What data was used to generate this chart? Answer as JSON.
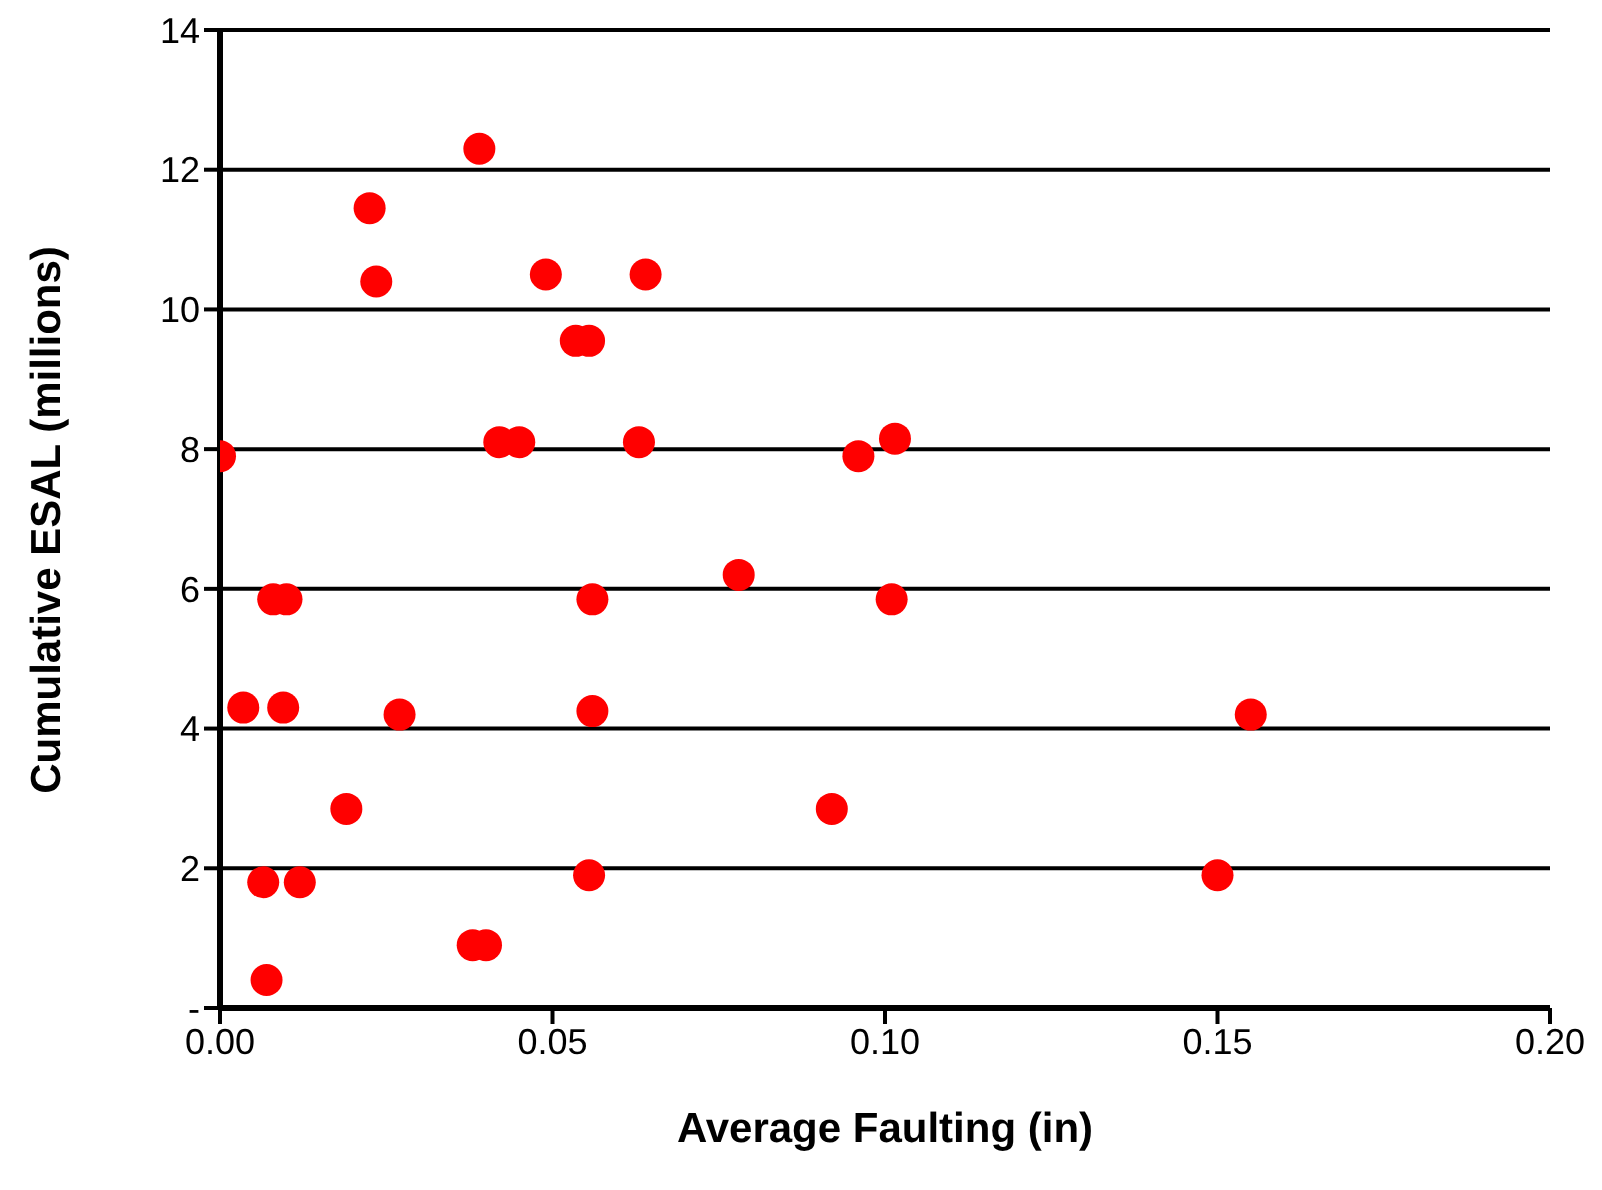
{
  "chart_data": {
    "type": "scatter",
    "xlabel": "Average Faulting (in)",
    "ylabel": "Cumulative ESAL (millions)",
    "xlim": [
      0,
      0.2
    ],
    "xticks": [
      {
        "value": 0,
        "label": "0.00"
      },
      {
        "value": 0.05,
        "label": "0.05"
      },
      {
        "value": 0.1,
        "label": "0.10"
      },
      {
        "value": 0.15,
        "label": "0.15"
      },
      {
        "value": 0.2,
        "label": "0.20"
      }
    ],
    "ylim": [
      0,
      14
    ],
    "yticks": [
      {
        "value": 0,
        "label": "-"
      },
      2,
      4,
      6,
      8,
      10,
      12,
      14
    ],
    "grid": "y",
    "marker": "circle",
    "legend": false,
    "series": [
      {
        "color": "#ff0000",
        "x": [
          0.039,
          0.0225,
          0.0235,
          0.049,
          0.064,
          0.0535,
          0.0555,
          0.0,
          0.042,
          0.045,
          0.063,
          0.096,
          0.1015,
          0.008,
          0.01,
          0.056,
          0.078,
          0.101,
          0.0035,
          0.0095,
          0.027,
          0.056,
          0.155,
          0.019,
          0.092,
          0.0065,
          0.012,
          0.0555,
          0.15,
          0.038,
          0.04,
          0.007
        ],
        "values": [
          12.3,
          11.45,
          10.4,
          10.5,
          10.5,
          9.55,
          9.55,
          7.9,
          8.1,
          8.1,
          8.1,
          7.9,
          8.15,
          5.85,
          5.85,
          5.85,
          6.2,
          5.85,
          4.3,
          4.3,
          4.2,
          4.25,
          4.2,
          2.85,
          2.85,
          1.8,
          1.8,
          1.9,
          1.9,
          0.9,
          0.9,
          0.4
        ]
      }
    ]
  }
}
